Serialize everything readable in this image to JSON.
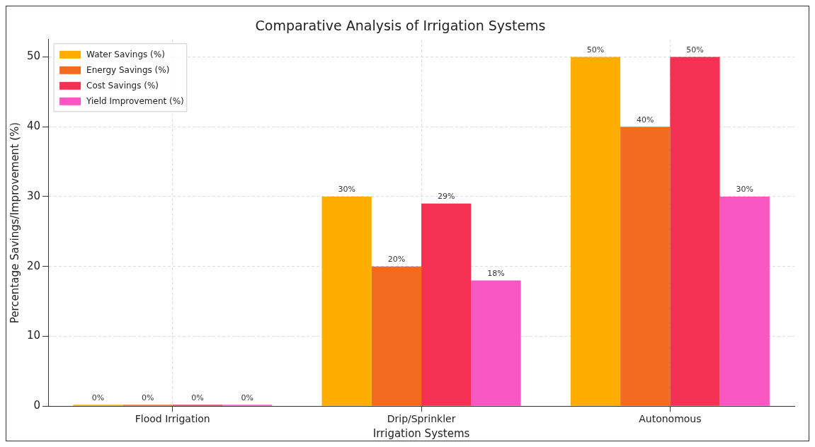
{
  "chart_data": {
    "type": "bar",
    "title": "Comparative Analysis of Irrigation Systems",
    "xlabel": "Irrigation Systems",
    "ylabel": "Percentage Savings/Improvement (%)",
    "categories": [
      "Flood Irrigation",
      "Drip/Sprinkler",
      "Autonomous"
    ],
    "series": [
      {
        "name": "Water Savings (%)",
        "color": "#ffad00",
        "values": [
          0,
          30,
          50
        ],
        "value_labels": [
          "0%",
          "30%",
          "50%"
        ]
      },
      {
        "name": "Energy Savings (%)",
        "color": "#f26b21",
        "values": [
          0,
          20,
          40
        ],
        "value_labels": [
          "0%",
          "20%",
          "40%"
        ]
      },
      {
        "name": "Cost Savings (%)",
        "color": "#f43152",
        "values": [
          0,
          29,
          50
        ],
        "value_labels": [
          "0%",
          "29%",
          "50%"
        ]
      },
      {
        "name": "Yield Improvement (%)",
        "color": "#f958c4",
        "values": [
          0,
          18,
          30
        ],
        "value_labels": [
          "0%",
          "18%",
          "30%"
        ]
      }
    ],
    "ylim": [
      0,
      52.5
    ],
    "yticks": [
      0,
      10,
      20,
      30,
      40,
      50
    ],
    "grid": true,
    "legend": "top left"
  }
}
